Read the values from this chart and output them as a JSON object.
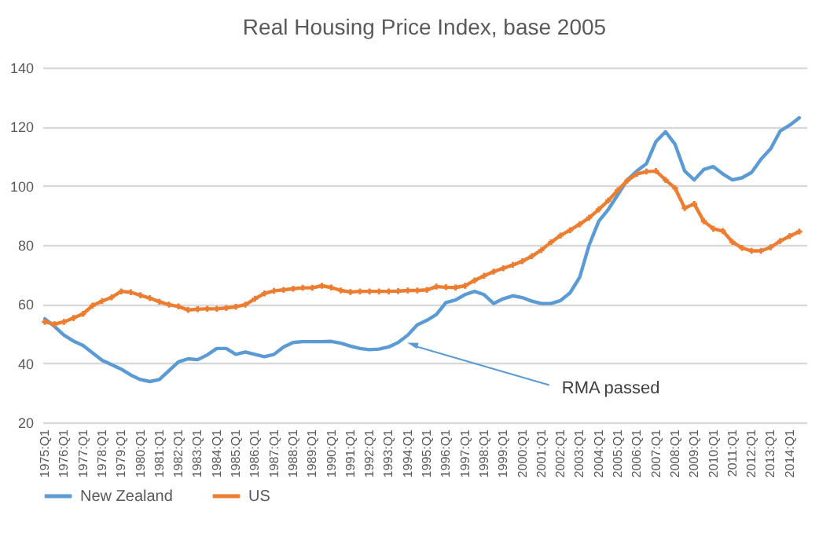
{
  "chart_data": {
    "type": "line",
    "title": "Real Housing Price Index, base 2005",
    "categories": [
      "1975:Q1",
      null,
      "1976:Q1",
      null,
      "1977:Q1",
      null,
      "1978:Q1",
      null,
      "1979:Q1",
      null,
      "1980:Q1",
      null,
      "1981:Q1",
      null,
      "1982:Q1",
      null,
      "1983:Q1",
      null,
      "1984:Q1",
      null,
      "1985:Q1",
      null,
      "1986:Q1",
      null,
      "1987:Q1",
      null,
      "1988:Q1",
      null,
      "1989:Q1",
      null,
      "1990:Q1",
      null,
      "1991:Q1",
      null,
      "1992:Q1",
      null,
      "1993:Q1",
      null,
      "1994:Q1",
      null,
      "1995:Q1",
      null,
      "1996:Q1",
      null,
      "1997:Q1",
      null,
      "1998:Q1",
      null,
      "1999:Q1",
      null,
      "2000:Q1",
      null,
      "2001:Q1",
      null,
      "2002:Q1",
      null,
      "2003:Q1",
      null,
      "2004:Q1",
      null,
      "2005:Q1",
      null,
      "2006:Q1",
      null,
      "2007:Q1",
      null,
      "2008:Q1",
      null,
      "2009:Q1",
      null,
      "2010:Q1",
      null,
      "2011:Q1",
      null,
      "2012:Q1",
      null,
      "2013:Q1",
      null,
      "2014:Q1",
      null
    ],
    "series": [
      {
        "name": "New Zealand",
        "color": "#5b9bd5",
        "marker": "none",
        "values": [
          55,
          52.5,
          49.5,
          47.5,
          46,
          43.5,
          41,
          39.5,
          38,
          36,
          34.5,
          33.8,
          34.5,
          37.5,
          40.5,
          41.5,
          41.2,
          42.8,
          45,
          45,
          43,
          43.8,
          43,
          42.2,
          43,
          45.5,
          47,
          47.3,
          47.3,
          47.3,
          47.4,
          46.8,
          45.8,
          45,
          44.6,
          44.8,
          45.5,
          47,
          49.5,
          53,
          54.5,
          56.5,
          60.5,
          61.4,
          63.2,
          64.3,
          63.2,
          60.2,
          61.8,
          62.8,
          62.2,
          61,
          60.2,
          60.2,
          61.2,
          63.8,
          69,
          80,
          88,
          92,
          97,
          102,
          105,
          107.5,
          115,
          118.3,
          114,
          105,
          102,
          105.5,
          106.5,
          104,
          102,
          102.7,
          104.5,
          109,
          112.5,
          118.5,
          120.5,
          123
        ]
      },
      {
        "name": "US",
        "color": "#ed7d31",
        "marker": "cross",
        "values": [
          54,
          53.2,
          54,
          55.3,
          56.7,
          59.5,
          61,
          62.3,
          64.3,
          64,
          63,
          62,
          60.8,
          59.8,
          59.2,
          58,
          58.3,
          58.4,
          58.4,
          58.7,
          59.1,
          59.8,
          61.8,
          63.6,
          64.5,
          64.8,
          65.2,
          65.5,
          65.5,
          66.2,
          65.6,
          64.6,
          64.1,
          64.3,
          64.3,
          64.3,
          64.3,
          64.4,
          64.6,
          64.6,
          64.8,
          65.9,
          65.7,
          65.6,
          66.2,
          68,
          69.6,
          71,
          72.1,
          73.2,
          74.5,
          76.2,
          78.3,
          80.9,
          83.2,
          85,
          87,
          89.2,
          92,
          95,
          98.5,
          101.8,
          104,
          104.8,
          105,
          102,
          99.2,
          92.5,
          93.9,
          88,
          85.5,
          84.7,
          81,
          79,
          78,
          78,
          79.2,
          81.3,
          83,
          84.5
        ]
      }
    ],
    "ylim": [
      20,
      140
    ],
    "yticks": [
      20,
      40,
      60,
      80,
      100,
      120,
      140
    ],
    "grid": "y",
    "legend": "bottom",
    "line_style": "solid",
    "annotations": [
      {
        "text": "RMA passed",
        "x": "1994:Q1",
        "y": 46.4
      }
    ]
  }
}
